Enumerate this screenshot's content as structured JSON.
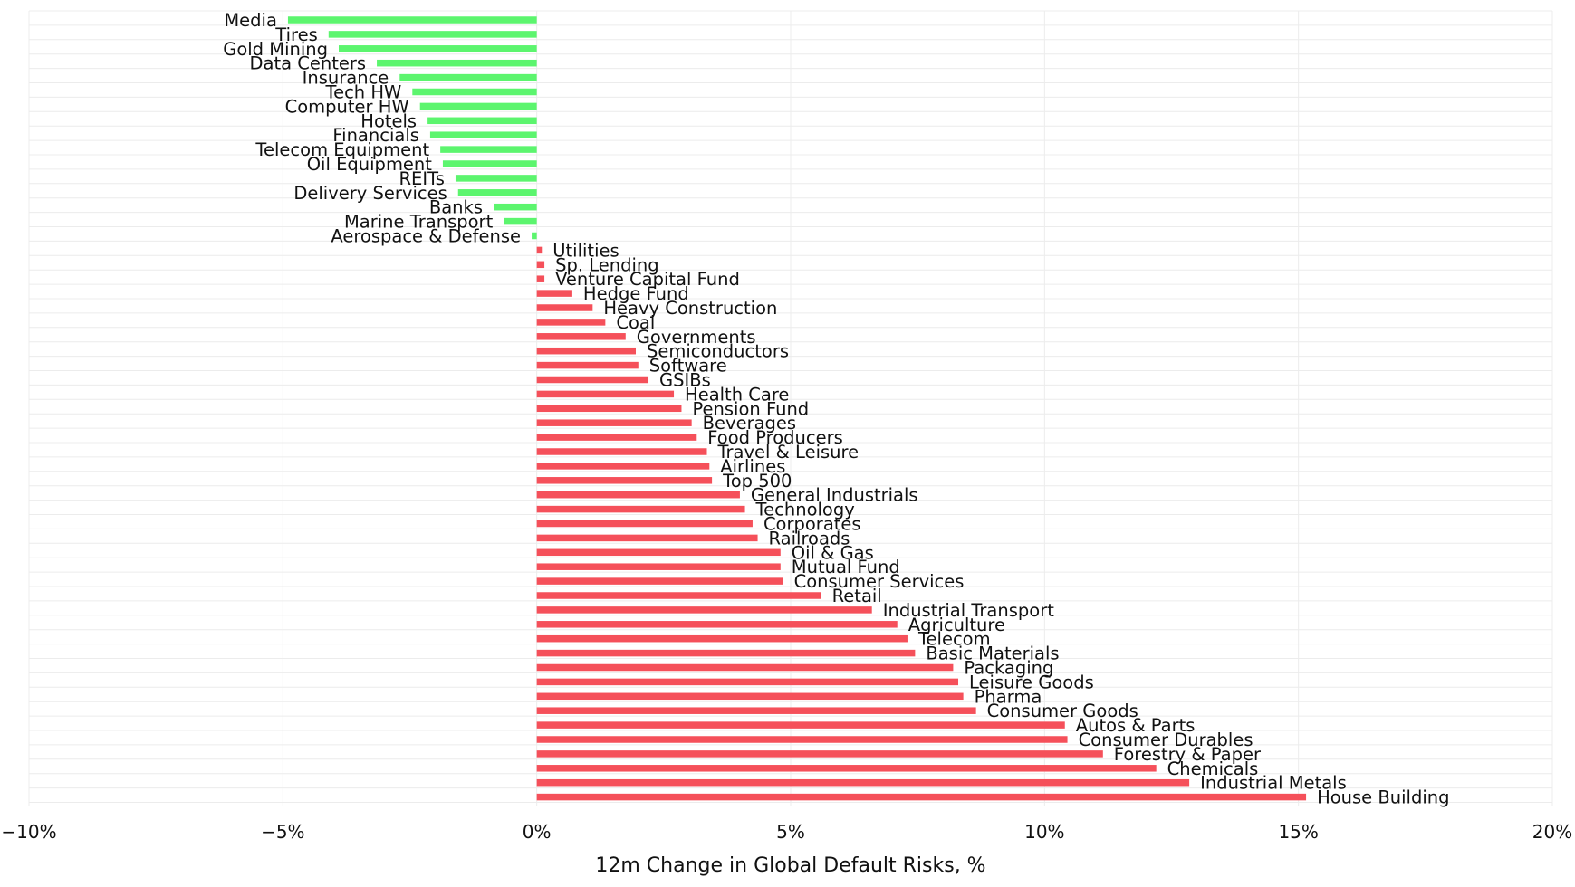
{
  "chart_data": {
    "type": "bar",
    "orientation": "horizontal",
    "title": "",
    "xlabel": "12m Change in Global Default Risks, %",
    "ylabel": "",
    "xlim": [
      -10,
      20
    ],
    "xticks": [
      -10,
      -5,
      0,
      5,
      10,
      15,
      20
    ],
    "xtick_labels": [
      "−10%",
      "−5%",
      "0%",
      "5%",
      "10%",
      "15%",
      "20%"
    ],
    "grid": true,
    "legend": "none",
    "colors": {
      "negative": "#5cf56e",
      "positive": "#f5505a",
      "grid": "#ececec",
      "text": "#111111"
    },
    "categories": [
      "Media",
      "Tires",
      "Gold Mining",
      "Data Centers",
      "Insurance",
      "Tech HW",
      "Computer HW",
      "Hotels",
      "Financials",
      "Telecom Equipment",
      "Oil Equipment",
      "REITs",
      "Delivery Services",
      "Banks",
      "Marine Transport",
      "Aerospace & Defense",
      "Utilities",
      "Sp. Lending",
      "Venture Capital Fund",
      "Hedge Fund",
      "Heavy Construction",
      "Coal",
      "Governments",
      "Semiconductors",
      "Software",
      "GSIBs",
      "Health Care",
      "Pension Fund",
      "Beverages",
      "Food Producers",
      "Travel & Leisure",
      "Airlines",
      "Top 500",
      "General Industrials",
      "Technology",
      "Corporates",
      "Railroads",
      "Oil & Gas",
      "Mutual Fund",
      "Consumer Services",
      "Retail",
      "Industrial Transport",
      "Agriculture",
      "Telecom",
      "Basic Materials",
      "Packaging",
      "Leisure Goods",
      "Pharma",
      "Consumer Goods",
      "Autos & Parts",
      "Consumer Durables",
      "Forestry & Paper",
      "Chemicals",
      "Industrial Metals",
      "House Building"
    ],
    "values": [
      -4.9,
      -4.1,
      -3.9,
      -3.15,
      -2.7,
      -2.45,
      -2.3,
      -2.15,
      -2.1,
      -1.9,
      -1.85,
      -1.6,
      -1.55,
      -0.85,
      -0.65,
      -0.1,
      0.1,
      0.15,
      0.15,
      0.7,
      1.1,
      1.35,
      1.75,
      1.95,
      2.0,
      2.2,
      2.7,
      2.85,
      3.05,
      3.15,
      3.35,
      3.4,
      3.45,
      4.0,
      4.1,
      4.25,
      4.35,
      4.8,
      4.8,
      4.85,
      5.6,
      6.6,
      7.1,
      7.3,
      7.45,
      8.2,
      8.3,
      8.4,
      8.65,
      10.4,
      10.45,
      11.15,
      12.2,
      12.85,
      15.15
    ]
  }
}
